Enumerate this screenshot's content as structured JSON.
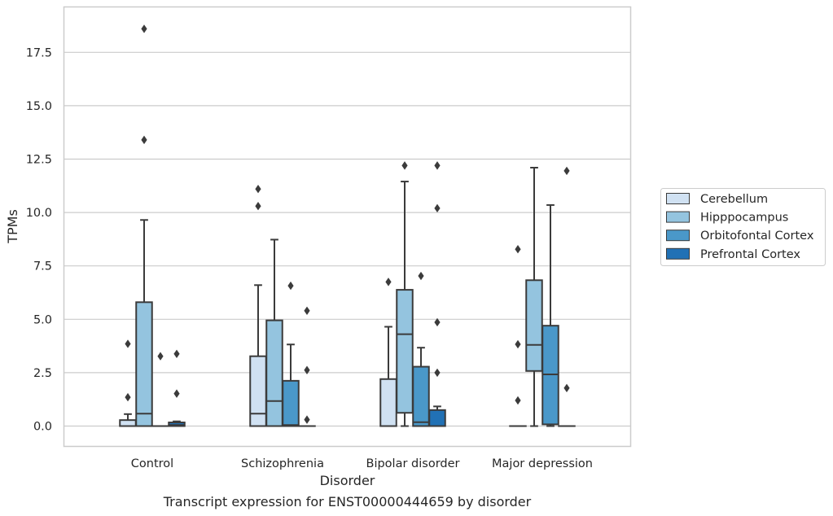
{
  "caption": "Transcript expression for ENST00000444659 by disorder",
  "chart_data": {
    "type": "box",
    "title": "",
    "xlabel": "Disorder",
    "ylabel": "TPMs",
    "ylim": [
      -0.9,
      19.4
    ],
    "yticks": [
      0.0,
      2.5,
      5.0,
      7.5,
      10.0,
      12.5,
      15.0,
      17.5
    ],
    "ytick_labels": [
      "0.0",
      "2.5",
      "5.0",
      "7.5",
      "10.0",
      "12.5",
      "15.0",
      "17.5"
    ],
    "grid": "horizontal",
    "legend_position": "right",
    "categories": [
      "Control",
      "Schizophrenia",
      "Bipolar disorder",
      "Major depression"
    ],
    "series": [
      {
        "name": "Cerebellum",
        "color": "#d0e1f2",
        "boxes": [
          {
            "category": "Control",
            "whislo": 0.0,
            "q1": 0.0,
            "median": 0.0,
            "q3": 0.28,
            "whishi": 0.56,
            "fliers": [
              3.85,
              1.35
            ]
          },
          {
            "category": "Schizophrenia",
            "whislo": 0.0,
            "q1": 0.0,
            "median": 0.58,
            "q3": 3.27,
            "whishi": 6.6,
            "fliers": [
              11.1,
              10.3
            ]
          },
          {
            "category": "Bipolar disorder",
            "whislo": 0.0,
            "q1": 0.0,
            "median": 0.0,
            "q3": 2.2,
            "whishi": 4.65,
            "fliers": [
              6.75
            ]
          },
          {
            "category": "Major depression",
            "whislo": 0.0,
            "q1": 0.0,
            "median": 0.0,
            "q3": 0.0,
            "whishi": 0.0,
            "fliers": [
              8.28,
              3.83,
              1.2
            ]
          }
        ]
      },
      {
        "name": "Hipppocampus",
        "color": "#94c4df",
        "boxes": [
          {
            "category": "Control",
            "whislo": 0.0,
            "q1": 0.0,
            "median": 0.58,
            "q3": 5.8,
            "whishi": 9.65,
            "fliers": [
              18.6,
              13.4
            ]
          },
          {
            "category": "Schizophrenia",
            "whislo": 0.0,
            "q1": 0.0,
            "median": 1.17,
            "q3": 4.95,
            "whishi": 8.73,
            "fliers": []
          },
          {
            "category": "Bipolar disorder",
            "whislo": 0.0,
            "q1": 0.62,
            "median": 4.3,
            "q3": 6.38,
            "whishi": 11.45,
            "fliers": [
              12.2
            ]
          },
          {
            "category": "Major depression",
            "whislo": 0.0,
            "q1": 2.58,
            "median": 3.8,
            "q3": 6.83,
            "whishi": 12.1,
            "fliers": []
          }
        ]
      },
      {
        "name": "Orbitofontal Cortex",
        "color": "#4a98c9",
        "boxes": [
          {
            "category": "Control",
            "whislo": 0.0,
            "q1": 0.0,
            "median": 0.0,
            "q3": 0.0,
            "whishi": 0.0,
            "fliers": [
              3.27
            ]
          },
          {
            "category": "Schizophrenia",
            "whislo": 0.0,
            "q1": 0.0,
            "median": 0.05,
            "q3": 2.12,
            "whishi": 3.82,
            "fliers": [
              6.57
            ]
          },
          {
            "category": "Bipolar disorder",
            "whislo": 0.0,
            "q1": 0.0,
            "median": 0.18,
            "q3": 2.78,
            "whishi": 3.67,
            "fliers": [
              7.03
            ]
          },
          {
            "category": "Major depression",
            "whislo": 0.0,
            "q1": 0.08,
            "median": 2.42,
            "q3": 4.7,
            "whishi": 10.35,
            "fliers": []
          }
        ]
      },
      {
        "name": "Prefrontal Cortex",
        "color": "#2171b5",
        "boxes": [
          {
            "category": "Control",
            "whislo": 0.0,
            "q1": 0.0,
            "median": 0.05,
            "q3": 0.17,
            "whishi": 0.22,
            "fliers": [
              3.38,
              1.52
            ]
          },
          {
            "category": "Schizophrenia",
            "whislo": 0.0,
            "q1": 0.0,
            "median": 0.0,
            "q3": 0.0,
            "whishi": 0.0,
            "fliers": [
              5.4,
              2.62,
              0.3
            ]
          },
          {
            "category": "Bipolar disorder",
            "whislo": 0.0,
            "q1": 0.0,
            "median": 0.0,
            "q3": 0.75,
            "whishi": 0.92,
            "fliers": [
              12.2,
              10.2,
              4.86,
              2.5
            ]
          },
          {
            "category": "Major depression",
            "whislo": 0.0,
            "q1": 0.0,
            "median": 0.0,
            "q3": 0.0,
            "whishi": 0.0,
            "fliers": [
              11.95,
              1.78
            ]
          }
        ]
      }
    ]
  }
}
